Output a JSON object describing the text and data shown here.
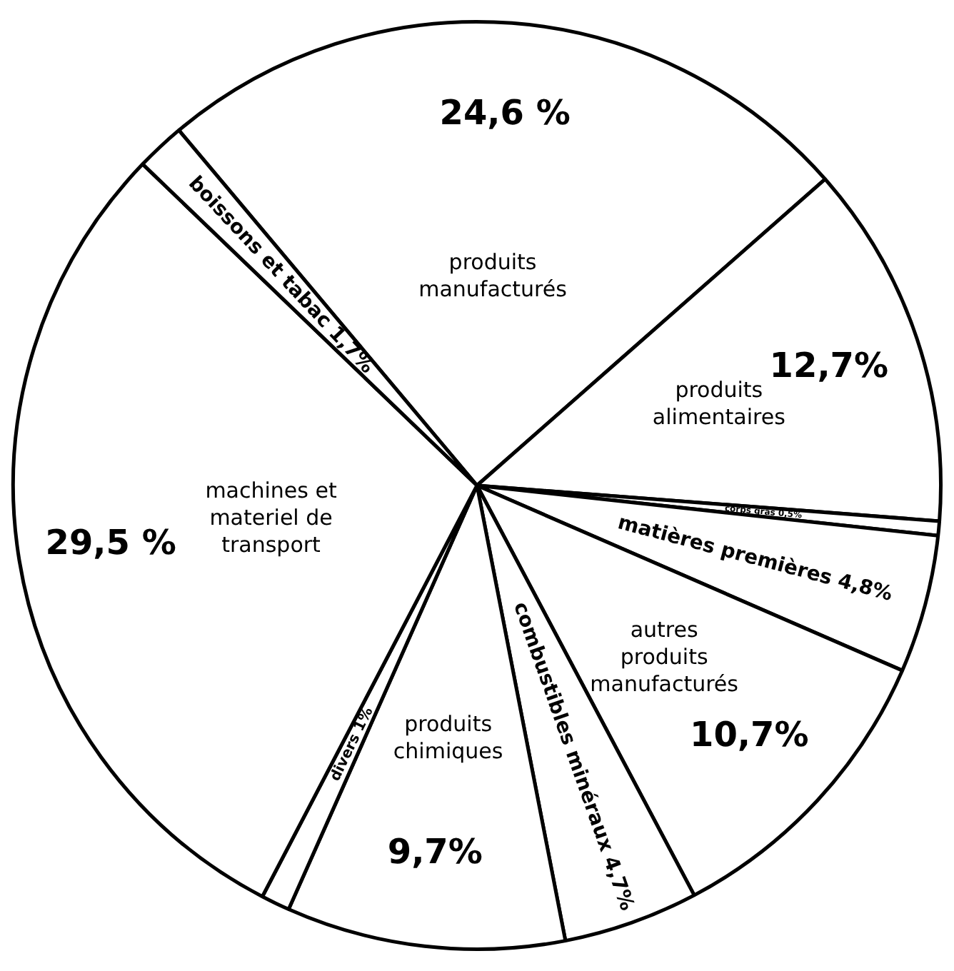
{
  "chart_data": {
    "type": "pie",
    "categories": [
      "produits manufacturés",
      "produits alimentaires",
      "corps gras",
      "matières premières",
      "autres produits manufacturés",
      "combustibles minéraux",
      "produits chimiques",
      "divers",
      "machines et materiel de transport",
      "boissons et tabac"
    ],
    "values": [
      24.6,
      12.7,
      0.5,
      4.8,
      10.7,
      4.7,
      9.7,
      1,
      29.5,
      1.7
    ],
    "value_labels": [
      "24,6 %",
      "12,7%",
      "0,5%",
      "4,8%",
      "10,7%",
      "4,7%",
      "9,7%",
      "1%",
      "29,5 %",
      "1,7%"
    ],
    "colors": [
      "#ffffff",
      "#ffffff",
      "#ffffff",
      "#ffffff",
      "#ffffff",
      "#ffffff",
      "#ffffff",
      "#ffffff",
      "#ffffff",
      "#ffffff"
    ],
    "legend": false
  }
}
